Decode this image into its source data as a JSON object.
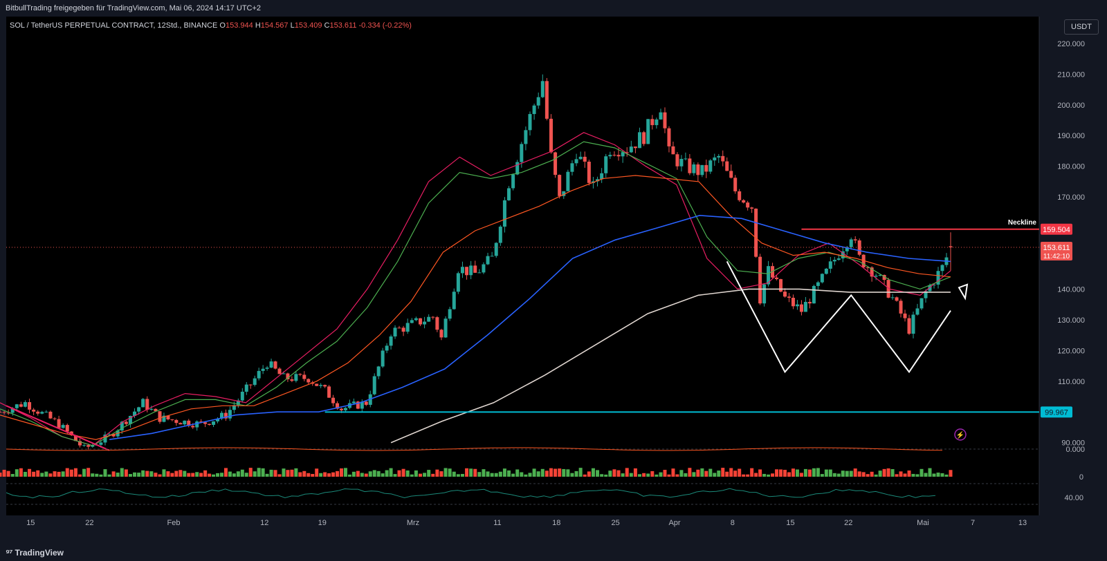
{
  "topbar": {
    "publisher": "BitbullTrading freigegeben für TradingView.com, Mai 06, 2024 14:17 UTC+2"
  },
  "legend": {
    "symbol": "SOL / TetherUS PERPETUAL CONTRACT, 12Std., BINANCE",
    "o_label": "O",
    "o": "153.944",
    "h_label": "H",
    "h": "154.567",
    "l_label": "L",
    "l": "153.409",
    "c_label": "C",
    "c": "153.611",
    "change": "-0.334 (-0.22%)"
  },
  "currency_button": "USDT",
  "branding": {
    "logo_glyph": "⁹⁷",
    "name": "TradingView"
  },
  "colors": {
    "background": "#000000",
    "panel": "#131722",
    "up": "#26a69a",
    "down": "#ef5350",
    "ma_short": "#e91e63",
    "ma_mid": "#4caf50",
    "ma_long": "#ff5722",
    "ma_200": "#2962ff",
    "ma_400": "#e0d6d0",
    "neckline": "#f23645",
    "support": "#00bcd4",
    "pattern": "#ffffff"
  },
  "chart_data": {
    "type": "candlestick",
    "symbol": "SOL / TetherUS PERPETUAL CONTRACT",
    "timeframe": "12Std.",
    "exchange": "BINANCE",
    "y_axis": {
      "ticks": [
        90,
        100,
        110,
        120,
        130,
        140,
        150,
        160,
        170,
        180,
        190,
        200,
        210,
        220
      ],
      "tick_labels": [
        "90.000",
        "",
        "110.000",
        "120.000",
        "130.000",
        "140.000",
        "",
        "",
        "170.000",
        "180.000",
        "190.000",
        "200.000",
        "210.000",
        "220.000"
      ],
      "range": [
        87,
        222
      ]
    },
    "x_axis": {
      "labels": [
        "15",
        "22",
        "Feb",
        "12",
        "19",
        "Mrz",
        "11",
        "18",
        "25",
        "Apr",
        "8",
        "15",
        "22",
        "Mai",
        "7",
        "13"
      ]
    },
    "price_path": [
      [
        "Jan 13",
        100
      ],
      [
        "Jan 16",
        103
      ],
      [
        "Jan 20",
        96
      ],
      [
        "Jan 23",
        88
      ],
      [
        "Jan 26",
        92
      ],
      [
        "Jan 30",
        103
      ],
      [
        "Feb 1",
        98
      ],
      [
        "Feb 6",
        96
      ],
      [
        "Feb 9",
        99
      ],
      [
        "Feb 12",
        109
      ],
      [
        "Feb 14",
        116
      ],
      [
        "Feb 16",
        111
      ],
      [
        "Feb 19",
        111
      ],
      [
        "Feb 21",
        107
      ],
      [
        "Feb 23",
        101
      ],
      [
        "Feb 26",
        103
      ],
      [
        "Feb 29",
        126
      ],
      [
        "Mar 3",
        129
      ],
      [
        "Mar 5",
        131
      ],
      [
        "Mar 6",
        124
      ],
      [
        "Mar 8",
        147
      ],
      [
        "Mar 10",
        145
      ],
      [
        "Mar 12",
        150
      ],
      [
        "Mar 14",
        175
      ],
      [
        "Mar 16",
        192
      ],
      [
        "Mar 18",
        208
      ],
      [
        "Mar 19",
        183
      ],
      [
        "Mar 20",
        169
      ],
      [
        "Mar 22",
        185
      ],
      [
        "Mar 24",
        173
      ],
      [
        "Mar 26",
        186
      ],
      [
        "Mar 28",
        186
      ],
      [
        "Mar 30",
        190
      ],
      [
        "Apr 1",
        200
      ],
      [
        "Apr 2",
        184
      ],
      [
        "Apr 4",
        180
      ],
      [
        "Apr 6",
        178
      ],
      [
        "Apr 8",
        183
      ],
      [
        "Apr 10",
        172
      ],
      [
        "Apr 12",
        167
      ],
      [
        "Apr 13",
        137
      ],
      [
        "Apr 14",
        146
      ],
      [
        "Apr 16",
        137
      ],
      [
        "Apr 18",
        133
      ],
      [
        "Apr 20",
        141
      ],
      [
        "Apr 23",
        154
      ],
      [
        "Apr 24",
        158
      ],
      [
        "Apr 25",
        150
      ],
      [
        "Apr 27",
        145
      ],
      [
        "Apr 29",
        137
      ],
      [
        "May 1",
        127
      ],
      [
        "May 3",
        139
      ],
      [
        "May 5",
        147
      ],
      [
        "May 6",
        153.6
      ]
    ],
    "moving_averages": [
      {
        "color": "#e91e63",
        "values": [
          103,
          98,
          92,
          89,
          97,
          102,
          106,
          105,
          103,
          111,
          119,
          127,
          140,
          156,
          175,
          183,
          177,
          181,
          185,
          191,
          187,
          180,
          174,
          150,
          140,
          142,
          151,
          155,
          148,
          140,
          138,
          146
        ]
      },
      {
        "color": "#4caf50",
        "values": [
          101,
          97,
          92,
          89,
          95,
          100,
          104,
          104,
          102,
          108,
          116,
          123,
          134,
          149,
          168,
          178,
          176,
          178,
          182,
          188,
          186,
          181,
          176,
          157,
          146,
          145,
          150,
          152,
          149,
          143,
          140,
          144
        ]
      },
      {
        "color": "#ff5722",
        "values": [
          99,
          96,
          93,
          91,
          94,
          98,
          101,
          102,
          102,
          106,
          110,
          116,
          125,
          136,
          152,
          159,
          163,
          167,
          172,
          176,
          177,
          176,
          175,
          164,
          155,
          151,
          152,
          150,
          147,
          145,
          144
        ]
      },
      {
        "color": "#2962ff",
        "values": [
          91,
          93,
          96,
          99,
          100,
          100,
          103,
          108,
          114,
          125,
          137,
          150,
          156,
          160,
          164,
          163,
          159,
          155,
          152,
          150,
          149
        ]
      },
      {
        "color": "#e0d6d0",
        "values": [
          90,
          97,
          103,
          112,
          122,
          132,
          138,
          140,
          140,
          139,
          139,
          139
        ]
      }
    ],
    "annotations": [
      {
        "label": "Neckline",
        "price": 159.504,
        "price_label": "159.504"
      },
      {
        "price": 99.967,
        "price_label": "99.967"
      },
      {
        "price": 153.611,
        "price_label": "153.611",
        "countdown": "11:42:10"
      }
    ],
    "pattern": {
      "type": "double-bottom",
      "points": [
        [
          149,
          137,
          113,
          138,
          113,
          133
        ]
      ]
    },
    "oscillator_1": {
      "label": "0.000"
    },
    "volume": {
      "label": "0"
    },
    "rsi": {
      "label": "40.00"
    }
  }
}
